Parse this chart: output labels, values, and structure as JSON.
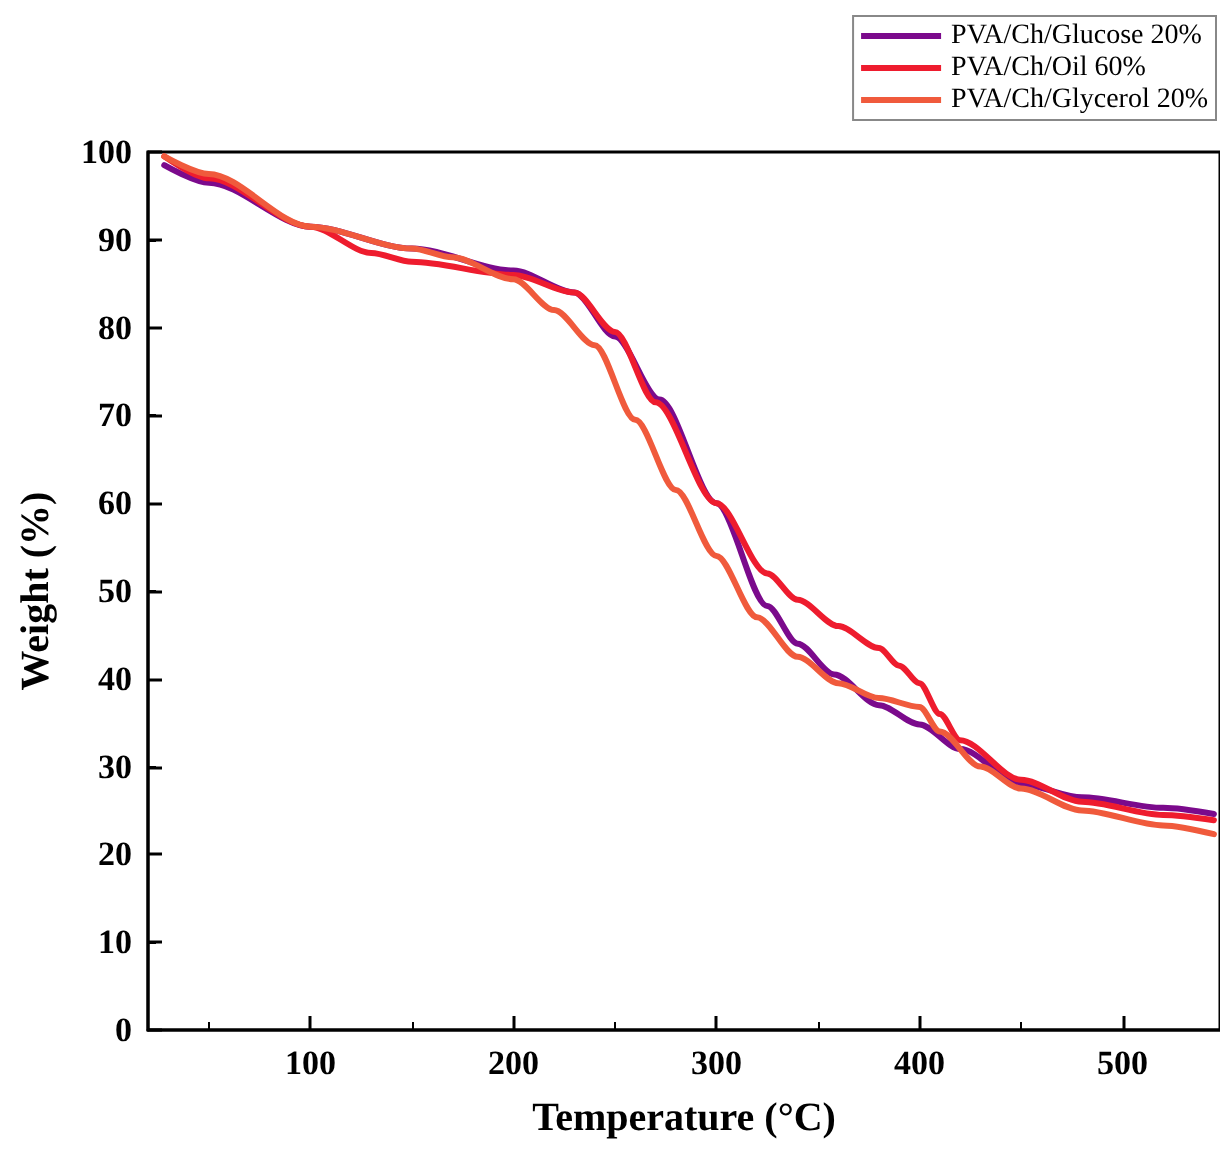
{
  "chart_data": {
    "type": "line",
    "xlabel": "Temperature (°C)",
    "ylabel": "Weight (%)",
    "xlim": [
      20,
      548
    ],
    "xticks": [
      100,
      200,
      300,
      400,
      500
    ],
    "ylim": [
      0,
      100
    ],
    "yticks": [
      0,
      10,
      20,
      30,
      40,
      50,
      60,
      70,
      80,
      90,
      100
    ],
    "grid": false,
    "legend": "top right",
    "marker": "none",
    "line_style": "solid",
    "series": [
      {
        "name": "PVA/Ch/Glucose 20%",
        "color": "#7b0a8c",
        "x": [
          28,
          50,
          100,
          150,
          200,
          230,
          250,
          272,
          300,
          325,
          340,
          358,
          380,
          400,
          420,
          450,
          480,
          520,
          545
        ],
        "values": [
          98.5,
          96.5,
          91.5,
          89,
          86.5,
          84,
          79,
          71.8,
          60,
          48.3,
          44,
          40.5,
          37,
          34.8,
          32,
          28,
          26.5,
          25.3,
          24.6
        ]
      },
      {
        "name": "PVA/Ch/Oil 60%",
        "color": "#ee1c2e",
        "x": [
          28,
          50,
          100,
          130,
          150,
          200,
          230,
          250,
          270,
          300,
          325,
          340,
          360,
          380,
          390,
          400,
          410,
          420,
          450,
          480,
          520,
          545
        ],
        "values": [
          99.5,
          97,
          91.5,
          88.5,
          87.5,
          86,
          84,
          79.5,
          71.5,
          60,
          52,
          49,
          46,
          43.5,
          41.5,
          39.5,
          36,
          33,
          28.5,
          26,
          24.5,
          23.9
        ]
      },
      {
        "name": "PVA/Ch/Glycerol 20%",
        "color": "#f05a3c",
        "x": [
          28,
          50,
          100,
          150,
          170,
          200,
          220,
          240,
          260,
          280,
          300,
          320,
          340,
          360,
          380,
          400,
          410,
          430,
          450,
          480,
          520,
          545
        ],
        "values": [
          99.5,
          97.5,
          91.5,
          89,
          88,
          85.5,
          82,
          78,
          69.5,
          61.5,
          54,
          47,
          42.5,
          39.5,
          37.8,
          36.8,
          34,
          30,
          27.5,
          25,
          23.3,
          22.3
        ]
      }
    ]
  }
}
